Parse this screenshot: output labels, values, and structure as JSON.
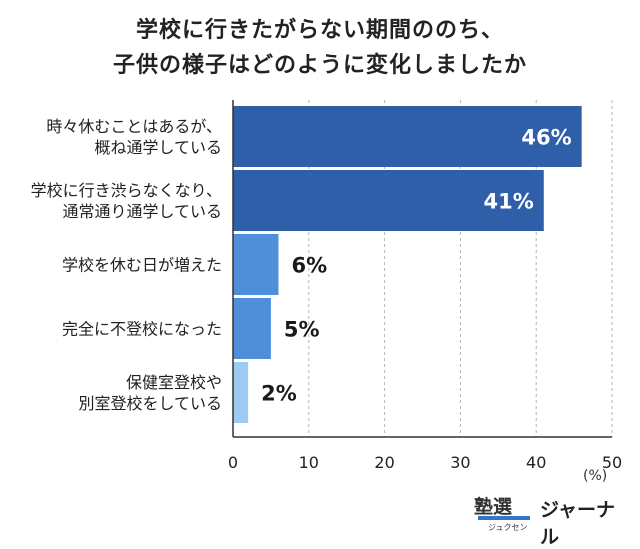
{
  "title": {
    "line1": "学校に行きたがらない期間ののち、",
    "line2": "子供の様子はどのように変化しましたか"
  },
  "chart_data": {
    "type": "bar",
    "orientation": "horizontal",
    "categories": [
      [
        "時々休むことはあるが、",
        "概ね通学している"
      ],
      [
        "学校に行き渋らなくなり、",
        "通常通り通学している"
      ],
      [
        "学校を休む日が増えた"
      ],
      [
        "完全に不登校になった"
      ],
      [
        "保健室登校や",
        "別室登校をしている"
      ]
    ],
    "values": [
      46,
      41,
      6,
      5,
      2
    ],
    "value_labels": [
      "46%",
      "41%",
      "6%",
      "5%",
      "2%"
    ],
    "bar_colors": [
      "#2e5fa8",
      "#2e5fa8",
      "#4f8fd9",
      "#4f8fd9",
      "#9ccaf1"
    ],
    "xlim": [
      0,
      50
    ],
    "xticks": [
      0,
      10,
      20,
      30,
      40,
      50
    ],
    "xunit": "(%)",
    "grid": true
  },
  "logo": {
    "mark": "塾選",
    "sub": "ジュクセン",
    "text": "ジャーナル"
  }
}
